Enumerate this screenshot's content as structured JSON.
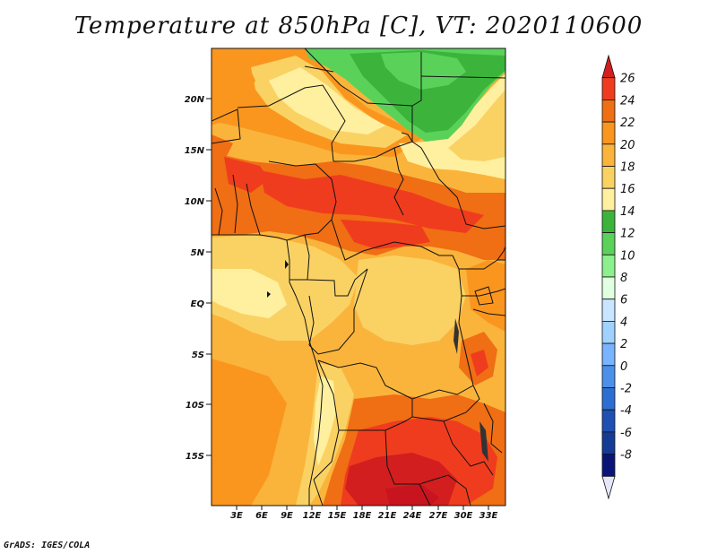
{
  "title": "Temperature at 850hPa [C], VT: 2020110600",
  "footer": "GrADS: IGES/COLA",
  "map": {
    "lat_labels": [
      "20N",
      "15N",
      "10N",
      "5N",
      "EQ",
      "5S",
      "10S",
      "15S"
    ],
    "lon_labels": [
      "3E",
      "6E",
      "9E",
      "12E",
      "15E",
      "18E",
      "21E",
      "24E",
      "27E",
      "30E",
      "33E"
    ]
  },
  "colorbar": {
    "labels": [
      "26",
      "24",
      "22",
      "20",
      "18",
      "16",
      "14",
      "12",
      "10",
      "8",
      "6",
      "4",
      "2",
      "0",
      "-2",
      "-4",
      "-6",
      "-8"
    ],
    "colors": [
      "#d21e1e",
      "#f03c1e",
      "#f06e14",
      "#fa961e",
      "#fab43c",
      "#fad264",
      "#fff0a0",
      "#3cb43c",
      "#5ad25a",
      "#8cf08c",
      "#e1ffe1",
      "#c8e6ff",
      "#a0d2ff",
      "#78b4ff",
      "#4b91eb",
      "#2d6ed2",
      "#1e50b4",
      "#143c96",
      "#0a1478",
      "#e6e6fa"
    ]
  }
}
